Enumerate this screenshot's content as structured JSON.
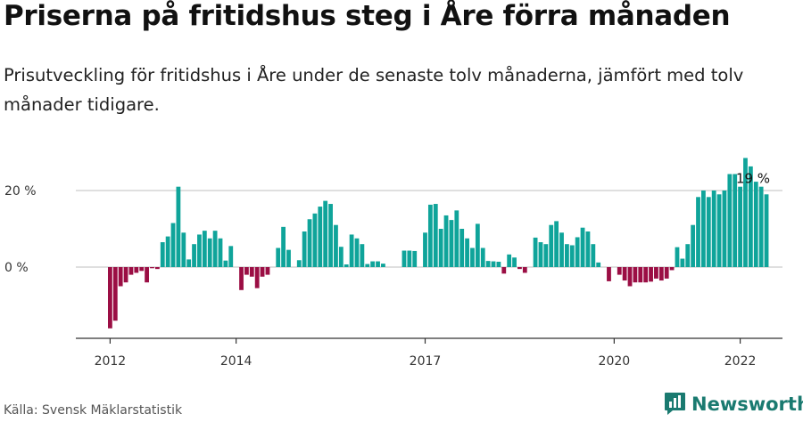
{
  "header": {
    "title": "Priserna på fritidshus steg i Åre förra månaden",
    "subtitle": "Prisutveckling för fritidshus i Åre under de senaste tolv månaderna, jämfört med tolv månader tidigare."
  },
  "footer": {
    "source": "Källa: Svensk Mäklarstatistik",
    "brand": "Newsworthy"
  },
  "colors": {
    "positive": "#0fa49a",
    "negative": "#9b0e44",
    "grid": "#cccccc",
    "axis": "#333333",
    "brand": "#1a7a70"
  },
  "chart_data": {
    "type": "bar",
    "start": "2012-01",
    "x_ticks": [
      "2012",
      "2014",
      "2017",
      "2020",
      "2022"
    ],
    "y_ticks": [
      0,
      20
    ],
    "y_tick_labels": [
      "0 %",
      "20 %"
    ],
    "ylim": [
      -19,
      31
    ],
    "annotation": {
      "label": "19 %",
      "value": 19
    },
    "values": [
      -16,
      -14,
      -5,
      -4,
      -2,
      -1.5,
      -1,
      -4,
      -0.3,
      -0.5,
      6.5,
      8,
      11.5,
      21,
      9,
      2,
      6,
      8.5,
      9.5,
      7.5,
      9.5,
      7.5,
      1.7,
      5.5,
      0,
      -6,
      -2,
      -2.5,
      -5.5,
      -2.5,
      -2,
      0,
      5,
      10.5,
      4.5,
      0,
      1.8,
      9.3,
      12.5,
      14,
      15.8,
      17.3,
      16.5,
      11,
      5.3,
      0.7,
      8.5,
      7.5,
      6,
      0.8,
      1.5,
      1.5,
      0.9,
      0,
      0,
      0,
      4.3,
      4.3,
      4.2,
      0,
      9,
      16.3,
      16.5,
      10,
      13.5,
      12.3,
      14.8,
      10,
      7.5,
      5,
      11.3,
      5,
      1.6,
      1.5,
      1.4,
      -1.7,
      3.3,
      2.5,
      -0.5,
      -1.5,
      0,
      7.7,
      6.5,
      6,
      11,
      12,
      9,
      6,
      5.7,
      7.8,
      10.3,
      9.3,
      6,
      1.2,
      0,
      -3.7,
      0,
      -2,
      -3.5,
      -5,
      -4,
      -4,
      -4,
      -3.8,
      -3,
      -3.5,
      -3,
      -0.8,
      5.2,
      2.2,
      6,
      11,
      18.3,
      20,
      18.3,
      20,
      19,
      20,
      24.3,
      24.3,
      21,
      28.5,
      26.3,
      22.3,
      21,
      19
    ]
  }
}
